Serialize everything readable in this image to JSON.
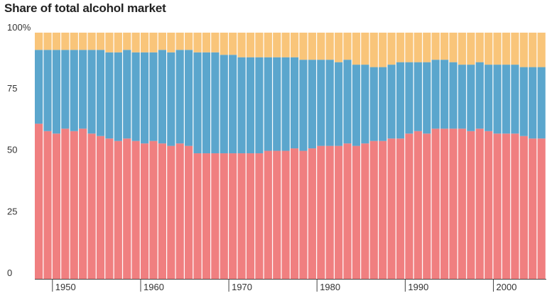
{
  "chart_data": {
    "type": "bar",
    "stacked": true,
    "title": "Share of total alcohol market",
    "xlabel": "",
    "ylabel": "",
    "ylim": [
      0,
      100
    ],
    "y_ticks": [
      "0",
      "25",
      "50",
      "75",
      "100%"
    ],
    "y_tick_values": [
      0,
      25,
      50,
      75,
      100
    ],
    "x_ticks": [
      "1950",
      "1960",
      "1970",
      "1980",
      "1990",
      "2000"
    ],
    "x_tick_values": [
      1950,
      1960,
      1970,
      1980,
      1990,
      2000
    ],
    "x": [
      1948,
      1949,
      1950,
      1951,
      1952,
      1953,
      1954,
      1955,
      1956,
      1957,
      1958,
      1959,
      1960,
      1961,
      1962,
      1963,
      1964,
      1965,
      1966,
      1967,
      1968,
      1969,
      1970,
      1971,
      1972,
      1973,
      1974,
      1975,
      1976,
      1977,
      1978,
      1979,
      1980,
      1981,
      1982,
      1983,
      1984,
      1985,
      1986,
      1987,
      1988,
      1989,
      1990,
      1991,
      1992,
      1993,
      1994,
      1995,
      1996,
      1997,
      1998,
      1999,
      2000,
      2001,
      2002,
      2003,
      2004,
      2005
    ],
    "grid": false,
    "legend": "none",
    "colors": [
      "#f07f80",
      "#5ba6cd",
      "#f9c57a"
    ],
    "series": [
      {
        "values": [
          63,
          60,
          59,
          61,
          60,
          61,
          59,
          58,
          57,
          56,
          57,
          56,
          55,
          56,
          55,
          54,
          55,
          54,
          51,
          51,
          51,
          51,
          51,
          51,
          51,
          51,
          52,
          52,
          52,
          53,
          52,
          53,
          54,
          54,
          54,
          55,
          54,
          55,
          56,
          56,
          57,
          57,
          59,
          60,
          59,
          61,
          61,
          61,
          61,
          60,
          61,
          60,
          59,
          59,
          59,
          58,
          57,
          57
        ],
        "upper": [
          63,
          60,
          59,
          61,
          60,
          61,
          59,
          58,
          57,
          56,
          57,
          56,
          55,
          56,
          55,
          54,
          55,
          54,
          51,
          51,
          51,
          51,
          51,
          51,
          51,
          51,
          52,
          52,
          52,
          53,
          52,
          53,
          54,
          54,
          54,
          55,
          54,
          55,
          56,
          56,
          57,
          57,
          59,
          60,
          59,
          61,
          61,
          61,
          61,
          60,
          61,
          60,
          59,
          59,
          59,
          58,
          57,
          57
        ]
      },
      {
        "values": [
          30,
          33,
          34,
          32,
          33,
          32,
          34,
          35,
          35,
          36,
          36,
          36,
          37,
          36,
          38,
          38,
          38,
          39,
          41,
          41,
          41,
          40,
          40,
          39,
          39,
          39,
          38,
          38,
          38,
          37,
          37,
          36,
          35,
          35,
          34,
          34,
          33,
          32,
          30,
          30,
          30,
          31,
          29,
          28,
          29,
          28,
          28,
          27,
          26,
          27,
          27,
          27,
          28,
          28,
          28,
          28,
          29,
          29
        ],
        "upper": [
          93,
          93,
          93,
          93,
          93,
          93,
          93,
          93,
          92,
          92,
          93,
          92,
          92,
          92,
          93,
          92,
          93,
          93,
          92,
          92,
          92,
          91,
          91,
          90,
          90,
          90,
          90,
          90,
          90,
          90,
          89,
          89,
          89,
          89,
          88,
          89,
          87,
          87,
          86,
          86,
          87,
          88,
          88,
          88,
          88,
          89,
          89,
          88,
          87,
          87,
          88,
          87,
          87,
          87,
          87,
          86,
          86,
          86
        ]
      },
      {
        "values": [
          7,
          7,
          7,
          7,
          7,
          7,
          7,
          7,
          8,
          8,
          7,
          8,
          8,
          8,
          7,
          8,
          7,
          7,
          8,
          8,
          8,
          9,
          9,
          10,
          10,
          10,
          10,
          10,
          10,
          10,
          11,
          11,
          11,
          11,
          12,
          11,
          13,
          13,
          14,
          14,
          13,
          12,
          12,
          12,
          12,
          11,
          11,
          12,
          13,
          13,
          12,
          13,
          13,
          13,
          13,
          14,
          14,
          14
        ],
        "upper": [
          100,
          100,
          100,
          100,
          100,
          100,
          100,
          100,
          100,
          100,
          100,
          100,
          100,
          100,
          100,
          100,
          100,
          100,
          100,
          100,
          100,
          100,
          100,
          100,
          100,
          100,
          100,
          100,
          100,
          100,
          100,
          100,
          100,
          100,
          100,
          100,
          100,
          100,
          100,
          100,
          100,
          100,
          100,
          100,
          100,
          100,
          100,
          100,
          100,
          100,
          100,
          100,
          100,
          100,
          100,
          100,
          100,
          100
        ]
      }
    ]
  }
}
